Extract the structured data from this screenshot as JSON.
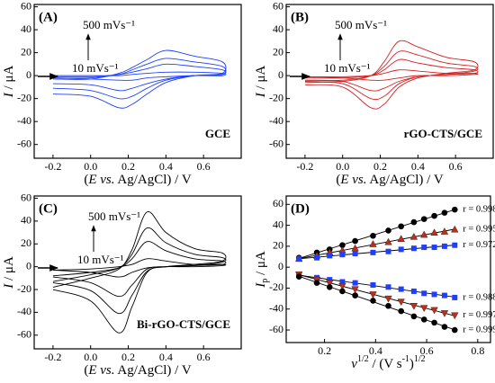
{
  "chart_data": [
    {
      "type": "line",
      "label": "(A)",
      "electrode": "GCE",
      "electrode_color": "#1f2fe0",
      "scan_high": "500 mVs⁻¹",
      "scan_low": "10 mVs⁻¹",
      "xlabel": [
        {
          "text": "(",
          "style": "n"
        },
        {
          "text": "E vs.",
          "style": "i"
        },
        {
          "text": " Ag/AgCl) / V",
          "style": "n"
        }
      ],
      "ylabel": [
        {
          "text": "I",
          "style": "i"
        },
        {
          "text": " / μA",
          "style": "n"
        }
      ],
      "xlim": [
        -0.3,
        0.8
      ],
      "xticks": [
        -0.2,
        {
          "value": 0,
          "label": "0.0"
        },
        0.2,
        0.4,
        0.6
      ],
      "ylim": [
        -72,
        62
      ],
      "yticks": [
        -60,
        -40,
        -20,
        0,
        20,
        40,
        60
      ],
      "x": [
        -0.2,
        0,
        0.15,
        0.22,
        0.3,
        0.4,
        0.55,
        0.7,
        0.7,
        0.55,
        0.4,
        0.3,
        0.22,
        0.15,
        0,
        -0.2
      ],
      "series": [
        {
          "color": "#1f3fff",
          "values": [
            -3,
            -3,
            2,
            7,
            14,
            22,
            17,
            12,
            2,
            0,
            -6,
            -16,
            -25,
            -28,
            -18,
            -16
          ]
        },
        {
          "color": "#1f3fff",
          "values": [
            -2,
            -2,
            1,
            5,
            10,
            15,
            12,
            8,
            1,
            0,
            -4,
            -11,
            -18,
            -20,
            -13,
            -11
          ]
        },
        {
          "color": "#1f3fff",
          "values": [
            -1,
            -1,
            1,
            3,
            6,
            10,
            8,
            5,
            1,
            0,
            -3,
            -7,
            -11,
            -13,
            -8,
            -7
          ]
        },
        {
          "color": "#1f3fff",
          "values": [
            0,
            0,
            0,
            1,
            2,
            3,
            3,
            2,
            0,
            0,
            -1,
            -2,
            -4,
            -4,
            -3,
            -2
          ]
        }
      ]
    },
    {
      "type": "line",
      "label": "(B)",
      "electrode": "rGO-CTS/GCE",
      "electrode_color": "#d42020",
      "scan_high": "500 mVs⁻¹",
      "scan_low": "10 mVs⁻¹",
      "xlabel": [
        {
          "text": "(",
          "style": "n"
        },
        {
          "text": "E vs.",
          "style": "i"
        },
        {
          "text": " Ag/AgCl) / V",
          "style": "n"
        }
      ],
      "ylabel": [
        {
          "text": "I",
          "style": "i"
        },
        {
          "text": " / μA",
          "style": "n"
        }
      ],
      "xlim": [
        -0.3,
        0.8
      ],
      "xticks": [
        -0.2,
        {
          "value": 0,
          "label": "0.0"
        },
        0.2,
        0.4,
        0.6
      ],
      "ylim": [
        -72,
        62
      ],
      "yticks": [
        -60,
        -40,
        -20,
        0,
        20,
        40,
        60
      ],
      "x": [
        -0.2,
        0,
        0.15,
        0.22,
        0.3,
        0.4,
        0.55,
        0.7,
        0.7,
        0.55,
        0.4,
        0.3,
        0.22,
        0.15,
        0,
        -0.2
      ],
      "series": [
        {
          "color": "#d42020",
          "values": [
            -5,
            -5,
            0,
            12,
            30,
            25,
            16,
            12,
            5,
            2,
            -2,
            -10,
            -25,
            -28,
            -10,
            -8
          ]
        },
        {
          "color": "#d42020",
          "values": [
            -4,
            -4,
            0,
            8,
            21,
            18,
            11,
            8,
            4,
            1,
            -1,
            -7,
            -18,
            -20,
            -7,
            -6
          ]
        },
        {
          "color": "#d42020",
          "values": [
            -2,
            -2,
            0,
            5,
            14,
            11,
            7,
            5,
            2,
            1,
            -1,
            -5,
            -11,
            -13,
            -5,
            -4
          ]
        },
        {
          "color": "#d42020",
          "values": [
            -1,
            -1,
            0,
            2,
            5,
            4,
            2,
            2,
            1,
            0,
            0,
            -2,
            -4,
            -4,
            -2,
            -1
          ]
        }
      ]
    },
    {
      "type": "line",
      "label": "(C)",
      "electrode": "Bi-rGO-CTS/GCE",
      "electrode_color": "#000000",
      "scan_high": "500 mVs⁻¹",
      "scan_low": "10 mVs⁻¹",
      "xlabel": [
        {
          "text": "(",
          "style": "n"
        },
        {
          "text": "E vs.",
          "style": "i"
        },
        {
          "text": " Ag/AgCl) / V",
          "style": "n"
        }
      ],
      "ylabel": [
        {
          "text": "I",
          "style": "i"
        },
        {
          "text": " / μA",
          "style": "n"
        }
      ],
      "xlim": [
        -0.3,
        0.8
      ],
      "xticks": [
        -0.2,
        {
          "value": 0,
          "label": "0.0"
        },
        0.2,
        0.4,
        0.6
      ],
      "ylim": [
        -72,
        62
      ],
      "yticks": [
        -60,
        -40,
        -20,
        0,
        20,
        40,
        60
      ],
      "x": [
        -0.2,
        0,
        0.15,
        0.22,
        0.3,
        0.4,
        0.55,
        0.7,
        0.7,
        0.55,
        0.4,
        0.3,
        0.22,
        0.15,
        0,
        -0.2
      ],
      "series": [
        {
          "color": "#000000",
          "values": [
            -18,
            -10,
            -2,
            15,
            48,
            30,
            16,
            12,
            5,
            2,
            0,
            -5,
            -35,
            -58,
            -30,
            -20
          ]
        },
        {
          "color": "#000000",
          "values": [
            -13,
            -7,
            -1,
            11,
            34,
            21,
            11,
            8,
            4,
            1,
            0,
            -4,
            -25,
            -41,
            -21,
            -14
          ]
        },
        {
          "color": "#000000",
          "values": [
            -8,
            -5,
            -1,
            7,
            22,
            14,
            7,
            5,
            2,
            1,
            0,
            -2,
            -16,
            -26,
            -14,
            -9
          ]
        },
        {
          "color": "#000000",
          "values": [
            -3,
            -2,
            0,
            2,
            7,
            5,
            2,
            2,
            1,
            0,
            0,
            -1,
            -5,
            -9,
            -5,
            -3
          ]
        }
      ]
    },
    {
      "type": "scatter",
      "label": "(D)",
      "xlabel": [
        {
          "text": "v",
          "style": "i"
        },
        {
          "text": "1/2",
          "style": "sup"
        },
        {
          "text": " / (V s",
          "style": "n"
        },
        {
          "text": "-1",
          "style": "sup"
        },
        {
          "text": ")",
          "style": "n"
        },
        {
          "text": "1/2",
          "style": "sup"
        }
      ],
      "ylabel": [
        {
          "text": "I",
          "style": "i"
        },
        {
          "text": "p",
          "style": "sub"
        },
        {
          "text": " / μA",
          "style": "n"
        }
      ],
      "xlim": [
        0.05,
        0.85
      ],
      "xticks": [
        0.2,
        0.4,
        0.6,
        0.8
      ],
      "ylim": [
        -72,
        68
      ],
      "yticks": [
        -60,
        -40,
        -20,
        0,
        20,
        40,
        60
      ],
      "x": [
        0.1,
        0.17,
        0.22,
        0.27,
        0.32,
        0.39,
        0.45,
        0.5,
        0.55,
        0.59,
        0.63,
        0.67,
        0.71
      ],
      "series": [
        {
          "color": "#000000",
          "marker": "circle",
          "r_label": "r = 0.998",
          "values": [
            9,
            14,
            17,
            21,
            25,
            30,
            35,
            39,
            43,
            46,
            49,
            52,
            55
          ]
        },
        {
          "color": "#b5321f",
          "marker": "triangle-up",
          "r_label": "r = 0.995",
          "values": [
            8,
            11,
            14,
            16,
            18,
            22,
            24,
            27,
            29,
            31,
            33,
            34,
            36
          ]
        },
        {
          "color": "#1f3fff",
          "marker": "square",
          "r_label": "r = 0.972",
          "values": [
            8,
            9,
            11,
            12,
            13,
            14,
            15,
            17,
            18,
            19,
            19,
            20,
            21
          ]
        },
        {
          "color": "#1f3fff",
          "marker": "square",
          "r_label": "r = 0.988",
          "values": [
            -8,
            -10,
            -12,
            -14,
            -15,
            -17,
            -19,
            -21,
            -23,
            -25,
            -26,
            -27,
            -29
          ]
        },
        {
          "color": "#b5321f",
          "marker": "triangle-down",
          "r_label": "r = 0.997",
          "values": [
            -7,
            -12,
            -15,
            -18,
            -21,
            -26,
            -30,
            -33,
            -37,
            -39,
            -41,
            -44,
            -46
          ]
        },
        {
          "color": "#000000",
          "marker": "circle",
          "r_label": "r = 0.999",
          "values": [
            -9,
            -15,
            -19,
            -23,
            -27,
            -32,
            -37,
            -42,
            -47,
            -50,
            -53,
            -57,
            -60
          ]
        }
      ]
    }
  ]
}
